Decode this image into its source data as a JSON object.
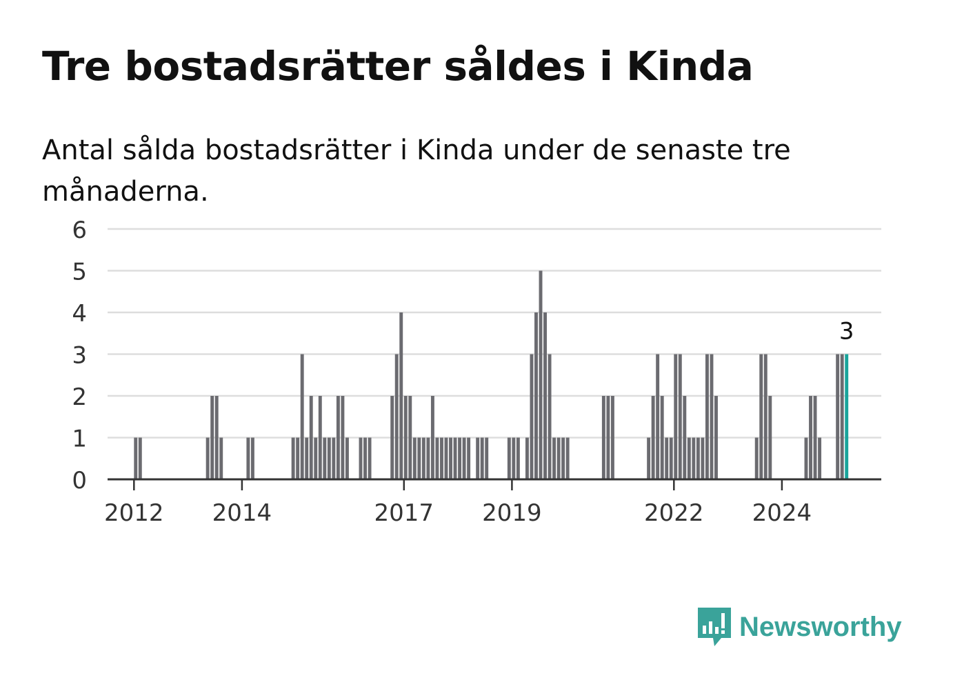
{
  "title": "Tre bostadsrätter såldes i Kinda",
  "subtitle": "Antal sålda bostadsrätter i Kinda under de senaste tre månaderna.",
  "brand": {
    "name": "Newsworthy",
    "icon": "newsworthy-logo-icon",
    "color": "#3aa39a"
  },
  "chart_data": {
    "type": "bar",
    "title": "Tre bostadsrätter såldes i Kinda",
    "subtitle": "Antal sålda bostadsrätter i Kinda under de senaste tre månaderna.",
    "xlabel": "",
    "ylabel": "",
    "ylim": [
      0,
      6
    ],
    "yticks": [
      "0",
      "1",
      "2",
      "3",
      "4",
      "5",
      "6"
    ],
    "grid": true,
    "bar_color": "#6b6b70",
    "highlight_color": "#19a49b",
    "highlight_label": "3",
    "x_tick_labels": [
      {
        "label": "2012",
        "year": 2012
      },
      {
        "label": "2014",
        "year": 2014
      },
      {
        "label": "2017",
        "year": 2017
      },
      {
        "label": "2019",
        "year": 2019
      },
      {
        "label": "2022",
        "year": 2022
      },
      {
        "label": "2024",
        "year": 2024
      }
    ],
    "start_year": 2011,
    "start_month": 5,
    "values": [
      0,
      0,
      0,
      0,
      0,
      0,
      0,
      0,
      1,
      1,
      0,
      0,
      0,
      0,
      0,
      0,
      0,
      0,
      0,
      0,
      0,
      0,
      0,
      0,
      1,
      2,
      2,
      1,
      0,
      0,
      0,
      0,
      0,
      1,
      1,
      0,
      0,
      0,
      0,
      0,
      0,
      0,
      0,
      1,
      1,
      3,
      1,
      2,
      1,
      2,
      1,
      1,
      1,
      2,
      2,
      1,
      0,
      0,
      1,
      1,
      1,
      0,
      0,
      0,
      0,
      2,
      3,
      4,
      2,
      2,
      1,
      1,
      1,
      1,
      2,
      1,
      1,
      1,
      1,
      1,
      1,
      1,
      1,
      0,
      1,
      1,
      1,
      0,
      0,
      0,
      0,
      1,
      1,
      1,
      0,
      1,
      3,
      4,
      5,
      4,
      3,
      1,
      1,
      1,
      1,
      0,
      0,
      0,
      0,
      0,
      0,
      0,
      2,
      2,
      2,
      0,
      0,
      0,
      0,
      0,
      0,
      0,
      1,
      2,
      3,
      2,
      1,
      1,
      3,
      3,
      2,
      1,
      1,
      1,
      1,
      3,
      3,
      2,
      0,
      0,
      0,
      0,
      0,
      0,
      0,
      0,
      1,
      3,
      3,
      2,
      0,
      0,
      0,
      0,
      0,
      0,
      0,
      1,
      2,
      2,
      1,
      0,
      0,
      0,
      3,
      3,
      3
    ]
  }
}
